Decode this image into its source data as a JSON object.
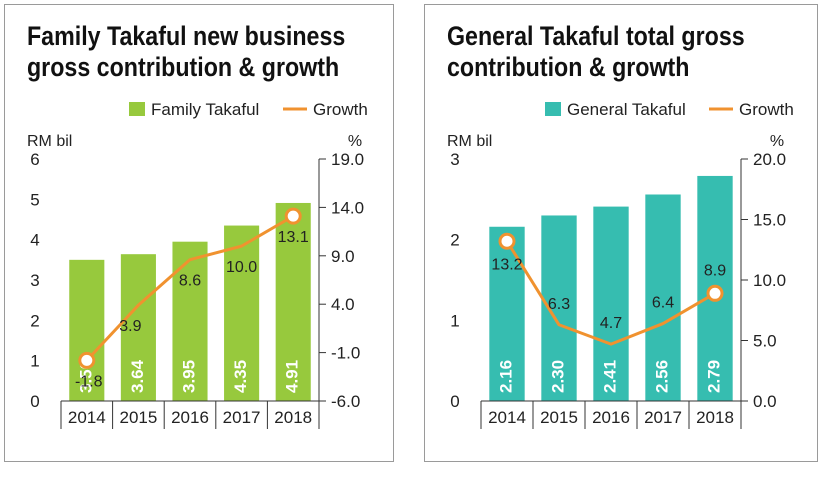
{
  "chart_data": [
    {
      "type": "bar",
      "title_lines": [
        "Family Takaful new business",
        "gross contribution & growth"
      ],
      "categories": [
        "2014",
        "2015",
        "2016",
        "2017",
        "2018"
      ],
      "bar_series": {
        "name": "Family Takaful",
        "values": [
          3.5,
          3.64,
          3.95,
          4.35,
          4.91
        ],
        "labels": [
          "3.50",
          "3.64",
          "3.95",
          "4.35",
          "4.91"
        ],
        "color": "#97c93d"
      },
      "line_series": {
        "name": "Growth",
        "values": [
          -1.8,
          3.9,
          8.6,
          10.0,
          13.1
        ],
        "labels": [
          "-1.8",
          "3.9",
          "8.6",
          "10.0",
          "13.1"
        ],
        "color": "#f0922f"
      },
      "ylabel_left": "RM bil",
      "ylabel_right": "%",
      "ylim_left": [
        0,
        6
      ],
      "yticks_left": [
        "0",
        "1",
        "2",
        "3",
        "4",
        "5",
        "6"
      ],
      "ylim_right": [
        -6.0,
        19.0
      ],
      "yticks_right": [
        "-6.0",
        "-1.0",
        "4.0",
        "9.0",
        "14.0",
        "19.0"
      ],
      "legend_position": "top-right",
      "grid": false
    },
    {
      "type": "bar",
      "title_lines": [
        "General Takaful total gross",
        "contribution & growth"
      ],
      "categories": [
        "2014",
        "2015",
        "2016",
        "2017",
        "2018"
      ],
      "bar_series": {
        "name": "General Takaful",
        "values": [
          2.16,
          2.3,
          2.41,
          2.56,
          2.79
        ],
        "labels": [
          "2.16",
          "2.30",
          "2.41",
          "2.56",
          "2.79"
        ],
        "color": "#36bdb0"
      },
      "line_series": {
        "name": "Growth",
        "values": [
          13.2,
          6.3,
          4.7,
          6.4,
          8.9
        ],
        "labels": [
          "13.2",
          "6.3",
          "4.7",
          "6.4",
          "8.9"
        ],
        "color": "#f0922f"
      },
      "ylabel_left": "RM bil",
      "ylabel_right": "%",
      "ylim_left": [
        0,
        3
      ],
      "yticks_left": [
        "0",
        "1",
        "2",
        "3"
      ],
      "ylim_right": [
        0.0,
        20.0
      ],
      "yticks_right": [
        "0.0",
        "5.0",
        "10.0",
        "15.0",
        "20.0"
      ],
      "legend_position": "top-right",
      "grid": false
    }
  ]
}
